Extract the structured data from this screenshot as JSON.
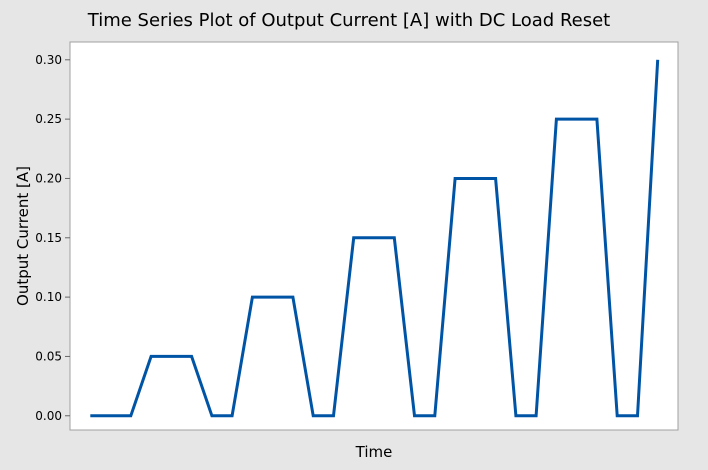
{
  "chart_data": {
    "type": "line",
    "title": "Time Series Plot of Output Current [A] with DC Load Reset",
    "xlabel": "Time",
    "ylabel": "Output Current [A]",
    "ylim": [
      -0.012,
      0.315
    ],
    "xlim": [
      0,
      30
    ],
    "y_ticks": [
      0.0,
      0.05,
      0.1,
      0.15,
      0.2,
      0.25,
      0.3
    ],
    "y_tick_labels": [
      "0.00",
      "0.05",
      "0.10",
      "0.15",
      "0.20",
      "0.25",
      "0.30"
    ],
    "grid": false,
    "legend": "none",
    "series": [
      {
        "color": "#0054a6",
        "x": [
          1,
          2,
          3,
          4,
          5,
          6,
          7,
          8,
          9,
          10,
          11,
          12,
          13,
          14,
          15,
          16,
          17,
          18,
          19,
          20,
          21,
          22,
          23,
          24,
          25,
          26,
          27,
          28,
          29
        ],
        "y": [
          0.0,
          0.0,
          0.0,
          0.05,
          0.05,
          0.05,
          0.0,
          0.0,
          0.1,
          0.1,
          0.1,
          0.0,
          0.0,
          0.15,
          0.15,
          0.15,
          0.0,
          0.0,
          0.2,
          0.2,
          0.2,
          0.0,
          0.0,
          0.25,
          0.25,
          0.25,
          0.0,
          0.0,
          0.3
        ]
      }
    ]
  },
  "colors": {
    "background": "#e6e6e6",
    "plot_area": "#ffffff",
    "line": "#0054a6"
  }
}
